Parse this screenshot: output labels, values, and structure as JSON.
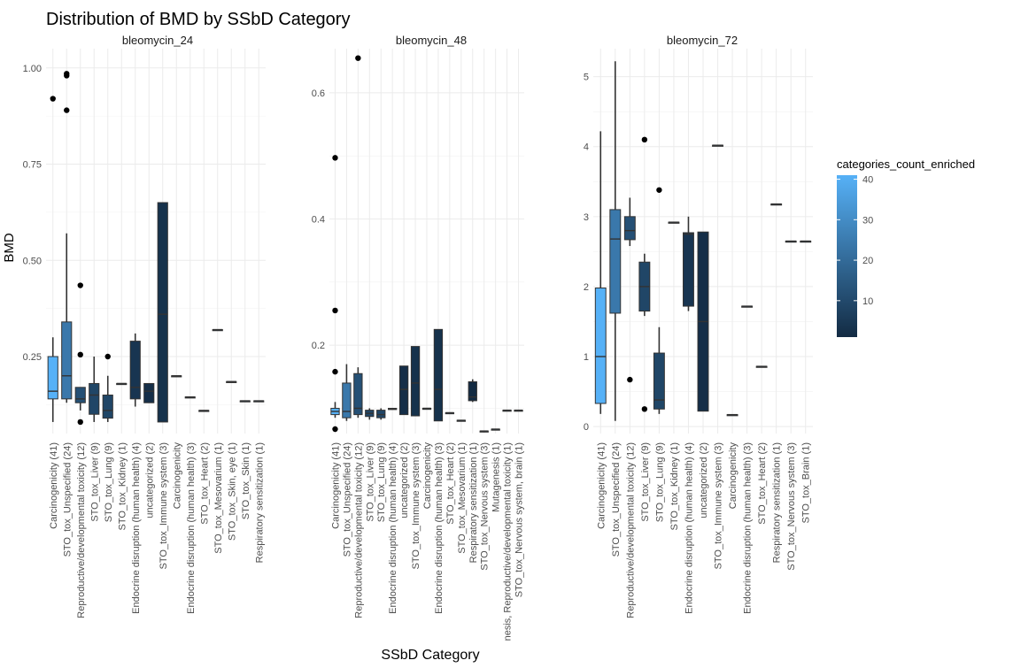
{
  "title": "Distribution of BMD by SSbD Category",
  "xlabel": "SSbD Category",
  "ylabel": "BMD",
  "legend": {
    "title": "categories_count_enriched",
    "ticks": [
      10,
      20,
      30,
      40
    ],
    "min": 1,
    "max": 41,
    "colors": {
      "low": "#132B43",
      "high": "#56B1F7"
    }
  },
  "chart_data": [
    {
      "type": "boxplot",
      "panel_title": "bleomycin_24",
      "ylim": [
        0.05,
        1.05
      ],
      "yticks": [
        "0.25",
        "0.50",
        "0.75",
        "1.00"
      ],
      "ytick_values": [
        0.25,
        0.5,
        0.75,
        1.0
      ],
      "grid": true,
      "categories": [
        {
          "label": "Carcinogenicity (41)",
          "count": 41,
          "min": 0.08,
          "q1": 0.14,
          "median": 0.16,
          "q3": 0.25,
          "max": 0.3,
          "outliers": [
            0.92
          ]
        },
        {
          "label": "STO_tox_Unspecified (24)",
          "count": 24,
          "min": 0.13,
          "q1": 0.14,
          "median": 0.2,
          "q3": 0.34,
          "max": 0.57,
          "outliers": [
            0.89,
            0.98,
            0.985
          ]
        },
        {
          "label": "Reproductive/developmental toxicity (12)",
          "count": 12,
          "min": 0.11,
          "q1": 0.13,
          "median": 0.14,
          "q3": 0.17,
          "max": 0.17,
          "outliers": [
            0.08,
            0.255,
            0.435
          ]
        },
        {
          "label": "STO_tox_Liver (9)",
          "count": 9,
          "min": 0.08,
          "q1": 0.1,
          "median": 0.15,
          "q3": 0.18,
          "max": 0.25,
          "outliers": []
        },
        {
          "label": "STO_tox_Lung (9)",
          "count": 9,
          "min": 0.08,
          "q1": 0.09,
          "median": 0.11,
          "q3": 0.15,
          "max": 0.2,
          "outliers": [
            0.25
          ]
        },
        {
          "label": "STO_tox_Kidney (1)",
          "count": 1,
          "min": 0.18,
          "q1": 0.18,
          "median": 0.18,
          "q3": 0.18,
          "max": 0.18,
          "outliers": []
        },
        {
          "label": "Endocrine disruption (human health) (4)",
          "count": 4,
          "min": 0.12,
          "q1": 0.14,
          "median": 0.17,
          "q3": 0.29,
          "max": 0.31,
          "outliers": []
        },
        {
          "label": "uncategorized (2)",
          "count": 2,
          "min": 0.13,
          "q1": 0.13,
          "median": 0.16,
          "q3": 0.18,
          "max": 0.18,
          "outliers": []
        },
        {
          "label": "STO_tox_Immune system (3)",
          "count": 3,
          "min": 0.08,
          "q1": 0.08,
          "median": 0.36,
          "q3": 0.65,
          "max": 0.65,
          "outliers": []
        },
        {
          "label": "Carcinogenicity",
          "count": 1,
          "min": 0.2,
          "q1": 0.2,
          "median": 0.2,
          "q3": 0.2,
          "max": 0.2,
          "outliers": []
        },
        {
          "label": "Endocrine disruption (human health) (3)",
          "count": 3,
          "min": 0.145,
          "q1": 0.145,
          "median": 0.145,
          "q3": 0.145,
          "max": 0.145,
          "outliers": []
        },
        {
          "label": "STO_tox_Heart (2)",
          "count": 2,
          "min": 0.11,
          "q1": 0.11,
          "median": 0.11,
          "q3": 0.11,
          "max": 0.11,
          "outliers": []
        },
        {
          "label": "STO_tox_Mesovarium (1)",
          "count": 1,
          "min": 0.32,
          "q1": 0.32,
          "median": 0.32,
          "q3": 0.32,
          "max": 0.32,
          "outliers": []
        },
        {
          "label": "STO_tox_Skin, eye (1)",
          "count": 1,
          "min": 0.185,
          "q1": 0.185,
          "median": 0.185,
          "q3": 0.185,
          "max": 0.185,
          "outliers": []
        },
        {
          "label": "STO_tox_Skin (1)",
          "count": 1,
          "min": 0.135,
          "q1": 0.135,
          "median": 0.135,
          "q3": 0.135,
          "max": 0.135,
          "outliers": []
        },
        {
          "label": "Respiratory sensitization (1)",
          "count": 1,
          "min": 0.135,
          "q1": 0.135,
          "median": 0.135,
          "q3": 0.135,
          "max": 0.135,
          "outliers": []
        }
      ]
    },
    {
      "type": "boxplot",
      "panel_title": "bleomycin_48",
      "ylim": [
        0.06,
        0.67
      ],
      "yticks": [
        "0.2",
        "0.4",
        "0.6"
      ],
      "ytick_values": [
        0.2,
        0.4,
        0.6
      ],
      "grid": true,
      "categories": [
        {
          "label": "Carcinogenicity (41)",
          "count": 41,
          "min": 0.085,
          "q1": 0.09,
          "median": 0.095,
          "q3": 0.1,
          "max": 0.11,
          "outliers": [
            0.067,
            0.158,
            0.255,
            0.497
          ]
        },
        {
          "label": "STO_tox_Unspecified (24)",
          "count": 24,
          "min": 0.08,
          "q1": 0.085,
          "median": 0.095,
          "q3": 0.14,
          "max": 0.17,
          "outliers": []
        },
        {
          "label": "Reproductive/developmental toxicity (12)",
          "count": 12,
          "min": 0.085,
          "q1": 0.09,
          "median": 0.1,
          "q3": 0.155,
          "max": 0.165,
          "outliers": [
            0.655
          ]
        },
        {
          "label": "STO_tox_Liver (9)",
          "count": 9,
          "min": 0.082,
          "q1": 0.087,
          "median": 0.092,
          "q3": 0.097,
          "max": 0.1,
          "outliers": []
        },
        {
          "label": "STO_tox_Lung (9)",
          "count": 9,
          "min": 0.082,
          "q1": 0.085,
          "median": 0.09,
          "q3": 0.097,
          "max": 0.1,
          "outliers": []
        },
        {
          "label": "Endocrine disruption (human health) (4)",
          "count": 4,
          "min": 0.098,
          "q1": 0.098,
          "median": 0.099,
          "q3": 0.1,
          "max": 0.1,
          "outliers": []
        },
        {
          "label": "uncategorized (2)",
          "count": 2,
          "min": 0.09,
          "q1": 0.09,
          "median": 0.13,
          "q3": 0.167,
          "max": 0.167,
          "outliers": []
        },
        {
          "label": "STO_tox_Immune system (3)",
          "count": 3,
          "min": 0.088,
          "q1": 0.088,
          "median": 0.14,
          "q3": 0.198,
          "max": 0.198,
          "outliers": []
        },
        {
          "label": "Carcinogenicity",
          "count": 1,
          "min": 0.1,
          "q1": 0.1,
          "median": 0.1,
          "q3": 0.1,
          "max": 0.1,
          "outliers": []
        },
        {
          "label": "Endocrine disruption (human health) (3)",
          "count": 3,
          "min": 0.08,
          "q1": 0.08,
          "median": 0.13,
          "q3": 0.225,
          "max": 0.225,
          "outliers": []
        },
        {
          "label": "STO_tox_Heart (2)",
          "count": 2,
          "min": 0.093,
          "q1": 0.093,
          "median": 0.093,
          "q3": 0.093,
          "max": 0.093,
          "outliers": []
        },
        {
          "label": "STO_tox_Mesovarium (1)",
          "count": 1,
          "min": 0.081,
          "q1": 0.081,
          "median": 0.081,
          "q3": 0.081,
          "max": 0.081,
          "outliers": []
        },
        {
          "label": "Respiratory sensitization (1)",
          "count": 1,
          "min": 0.11,
          "q1": 0.112,
          "median": 0.118,
          "q3": 0.142,
          "max": 0.146,
          "outliers": []
        },
        {
          "label": "STO_tox_Nervous system (3)",
          "count": 3,
          "min": 0.064,
          "q1": 0.064,
          "median": 0.064,
          "q3": 0.064,
          "max": 0.064,
          "outliers": []
        },
        {
          "label": "Mutagenesis (1)",
          "count": 1,
          "min": 0.067,
          "q1": 0.067,
          "median": 0.067,
          "q3": 0.067,
          "max": 0.067,
          "outliers": []
        },
        {
          "label": "nesis, Reproductive/developmental toxicity (1)",
          "count": 1,
          "min": 0.097,
          "q1": 0.097,
          "median": 0.097,
          "q3": 0.097,
          "max": 0.097,
          "outliers": []
        },
        {
          "label": "STO_tox_Nervous system, brain (1)",
          "count": 1,
          "min": 0.097,
          "q1": 0.097,
          "median": 0.097,
          "q3": 0.097,
          "max": 0.097,
          "outliers": []
        }
      ]
    },
    {
      "type": "boxplot",
      "panel_title": "bleomycin_72",
      "ylim": [
        -0.1,
        5.4
      ],
      "yticks": [
        "0",
        "1",
        "2",
        "3",
        "4",
        "5"
      ],
      "ytick_values": [
        0,
        1,
        2,
        3,
        4,
        5
      ],
      "grid": true,
      "categories": [
        {
          "label": "Carcinogenicity (41)",
          "count": 41,
          "min": 0.18,
          "q1": 0.33,
          "median": 1.0,
          "q3": 1.98,
          "max": 4.22,
          "outliers": []
        },
        {
          "label": "STO_tox_Unspecified (24)",
          "count": 24,
          "min": 0.08,
          "q1": 1.62,
          "median": 2.68,
          "q3": 3.1,
          "max": 5.22,
          "outliers": []
        },
        {
          "label": "Reproductive/developmental toxicity (12)",
          "count": 12,
          "min": 2.58,
          "q1": 2.67,
          "median": 2.8,
          "q3": 3.0,
          "max": 3.27,
          "outliers": [
            0.67
          ]
        },
        {
          "label": "STO_tox_Liver (9)",
          "count": 9,
          "min": 1.58,
          "q1": 1.65,
          "median": 2.0,
          "q3": 2.35,
          "max": 2.47,
          "outliers": [
            0.25,
            4.1
          ]
        },
        {
          "label": "STO_tox_Lung (9)",
          "count": 9,
          "min": 0.18,
          "q1": 0.25,
          "median": 0.38,
          "q3": 1.05,
          "max": 1.42,
          "outliers": [
            3.38
          ]
        },
        {
          "label": "STO_tox_Kidney (1)",
          "count": 1,
          "min": 2.92,
          "q1": 2.92,
          "median": 2.92,
          "q3": 2.92,
          "max": 2.92,
          "outliers": []
        },
        {
          "label": "Endocrine disruption (human health) (4)",
          "count": 4,
          "min": 1.65,
          "q1": 1.72,
          "median": 2.75,
          "q3": 2.77,
          "max": 3.0,
          "outliers": []
        },
        {
          "label": "uncategorized (2)",
          "count": 2,
          "min": 0.22,
          "q1": 0.22,
          "median": 1.5,
          "q3": 2.78,
          "max": 2.78,
          "outliers": []
        },
        {
          "label": "STO_tox_Immune system (3)",
          "count": 3,
          "min": 4.02,
          "q1": 4.02,
          "median": 4.02,
          "q3": 4.02,
          "max": 4.02,
          "outliers": []
        },
        {
          "label": "Carcinogenicity",
          "count": 1,
          "min": 0.17,
          "q1": 0.17,
          "median": 0.17,
          "q3": 0.17,
          "max": 0.17,
          "outliers": []
        },
        {
          "label": "Endocrine disruption (human health) (3)",
          "count": 3,
          "min": 1.72,
          "q1": 1.72,
          "median": 1.72,
          "q3": 1.72,
          "max": 1.72,
          "outliers": []
        },
        {
          "label": "STO_tox_Heart (2)",
          "count": 2,
          "min": 0.86,
          "q1": 0.86,
          "median": 0.86,
          "q3": 0.86,
          "max": 0.86,
          "outliers": []
        },
        {
          "label": "Respiratory sensitization (1)",
          "count": 1,
          "min": 3.18,
          "q1": 3.18,
          "median": 3.18,
          "q3": 3.18,
          "max": 3.18,
          "outliers": []
        },
        {
          "label": "STO_tox_Nervous system (3)",
          "count": 3,
          "min": 2.65,
          "q1": 2.65,
          "median": 2.65,
          "q3": 2.65,
          "max": 2.65,
          "outliers": []
        },
        {
          "label": "STO_tox_Brain (1)",
          "count": 1,
          "min": 2.65,
          "q1": 2.65,
          "median": 2.65,
          "q3": 2.65,
          "max": 2.65,
          "outliers": []
        }
      ]
    }
  ]
}
